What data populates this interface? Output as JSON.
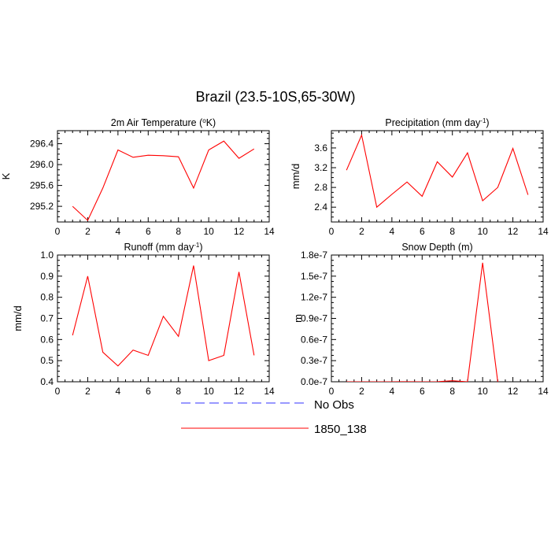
{
  "figure": {
    "title": "Brazil (23.5-10S,65-30W)"
  },
  "colors": {
    "series_line": "#ff0000",
    "obs_line": "#3333ff",
    "axis": "#000000",
    "background": "#ffffff"
  },
  "legend": {
    "placement": "bottom-center",
    "entries": [
      {
        "label": "No Obs",
        "style": "dashed",
        "color": "#3333ff"
      },
      {
        "label": "1850_138",
        "style": "solid",
        "color": "#ff0000"
      }
    ]
  },
  "chart_data": [
    {
      "type": "line",
      "title": "2m Air Temperature (°K)",
      "title_parts": {
        "main": "2m Air Temperature (",
        "sup": "o",
        "rest": "K)"
      },
      "xlabel": "",
      "ylabel": "K",
      "xlim": [
        0,
        14
      ],
      "ylim": [
        294.9,
        296.65
      ],
      "x_ticks": [
        0,
        2,
        4,
        6,
        8,
        10,
        12,
        14
      ],
      "x_tick_labels": [
        "0",
        "2",
        "4",
        "6",
        "8",
        "10",
        "12",
        "14"
      ],
      "y_ticks": [
        295.2,
        295.6,
        296.0,
        296.4
      ],
      "y_tick_labels": [
        "295.2",
        "295.6",
        "296.0",
        "296.4"
      ],
      "x": [
        1,
        2,
        3,
        4,
        5,
        6,
        7,
        8,
        9,
        10,
        11,
        12,
        13
      ],
      "series": [
        {
          "name": "1850_138",
          "values": [
            295.2,
            294.93,
            295.55,
            296.28,
            296.14,
            296.18,
            296.17,
            296.15,
            295.55,
            296.28,
            296.45,
            296.12,
            296.3
          ]
        }
      ],
      "grid": false
    },
    {
      "type": "line",
      "title": "Precipitation (mm day-1)",
      "title_parts": {
        "main": "Precipitation (mm day",
        "sup": "-1",
        "rest": ")"
      },
      "xlabel": "",
      "ylabel": "mm/d",
      "xlim": [
        0,
        14
      ],
      "ylim": [
        2.1,
        3.95
      ],
      "x_ticks": [
        0,
        2,
        4,
        6,
        8,
        10,
        12,
        14
      ],
      "x_tick_labels": [
        "0",
        "2",
        "4",
        "6",
        "8",
        "10",
        "12",
        "14"
      ],
      "y_ticks": [
        2.4,
        2.8,
        3.2,
        3.6
      ],
      "y_tick_labels": [
        "2.4",
        "2.8",
        "3.2",
        "3.6"
      ],
      "x": [
        1,
        2,
        3,
        4,
        5,
        6,
        7,
        8,
        9,
        10,
        11,
        12,
        13
      ],
      "series": [
        {
          "name": "1850_138",
          "values": [
            3.15,
            3.86,
            2.4,
            2.66,
            2.91,
            2.62,
            3.32,
            3.01,
            3.5,
            2.53,
            2.8,
            3.59,
            2.65
          ]
        }
      ],
      "grid": false
    },
    {
      "type": "line",
      "title": "Runoff (mm day-1)",
      "title_parts": {
        "main": "Runoff (mm day",
        "sup": "-1",
        "rest": ")"
      },
      "xlabel": "",
      "ylabel": "mm/d",
      "xlim": [
        0,
        14
      ],
      "ylim": [
        0.4,
        1.0
      ],
      "x_ticks": [
        0,
        2,
        4,
        6,
        8,
        10,
        12,
        14
      ],
      "x_tick_labels": [
        "0",
        "2",
        "4",
        "6",
        "8",
        "10",
        "12",
        "14"
      ],
      "y_ticks": [
        0.4,
        0.5,
        0.6,
        0.7,
        0.8,
        0.9,
        1.0
      ],
      "y_tick_labels": [
        "0.4",
        "0.5",
        "0.6",
        "0.7",
        "0.8",
        "0.9",
        "1.0"
      ],
      "x": [
        1,
        2,
        3,
        4,
        5,
        6,
        7,
        8,
        9,
        10,
        11,
        12,
        13
      ],
      "series": [
        {
          "name": "1850_138",
          "values": [
            0.62,
            0.9,
            0.54,
            0.475,
            0.55,
            0.525,
            0.71,
            0.615,
            0.95,
            0.5,
            0.525,
            0.92,
            0.525
          ]
        }
      ],
      "grid": false
    },
    {
      "type": "line",
      "title": "Snow Depth (m)",
      "title_parts": {
        "main": "Snow Depth (m)",
        "sup": "",
        "rest": ""
      },
      "xlabel": "",
      "ylabel": "m",
      "xlim": [
        0,
        14
      ],
      "ylim": [
        0,
        1.8e-07
      ],
      "x_ticks": [
        0,
        2,
        4,
        6,
        8,
        10,
        12,
        14
      ],
      "x_tick_labels": [
        "0",
        "2",
        "4",
        "6",
        "8",
        "10",
        "12",
        "14"
      ],
      "y_ticks": [
        0,
        3e-08,
        6e-08,
        9e-08,
        1.2e-07,
        1.5e-07,
        1.8e-07
      ],
      "y_tick_labels": [
        "0.0e-7",
        "0.3e-7",
        "0.6e-7",
        "0.9e-7",
        "1.2e-7",
        "1.5e-7",
        "1.8e-7"
      ],
      "x": [
        1,
        2,
        3,
        4,
        5,
        6,
        7,
        8,
        9,
        10,
        11,
        12,
        13
      ],
      "series": [
        {
          "name": "1850_138",
          "values": [
            0,
            0,
            0,
            0,
            1e-10,
            0,
            1e-10,
            1.5e-09,
            0,
            1.69e-07,
            0,
            -1e-08,
            -1e-08
          ]
        }
      ],
      "grid": false
    }
  ]
}
